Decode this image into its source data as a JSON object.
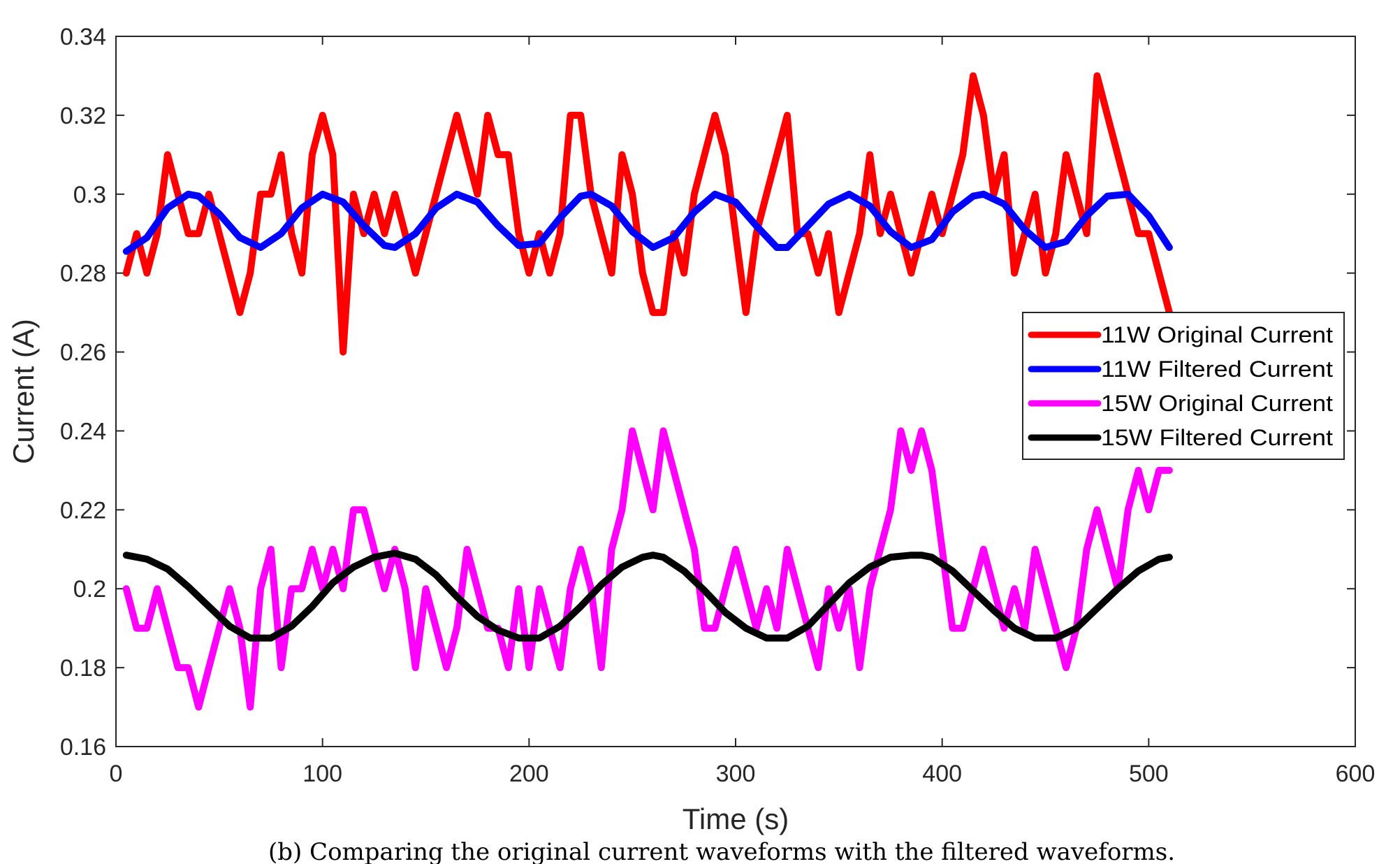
{
  "chart_data": {
    "type": "line",
    "title": "",
    "xlabel": "Time (s)",
    "ylabel": "Current (A)",
    "xlim": [
      0,
      600
    ],
    "ylim": [
      0.16,
      0.34
    ],
    "xticks": [
      0,
      100,
      200,
      300,
      400,
      500,
      600
    ],
    "yticks": [
      0.16,
      0.18,
      0.2,
      0.22,
      0.24,
      0.26,
      0.28,
      0.3,
      0.32,
      0.34
    ],
    "xtick_labels": [
      "0",
      "100",
      "200",
      "300",
      "400",
      "500",
      "600"
    ],
    "ytick_labels": [
      "0.16",
      "0.18",
      "0.2",
      "0.22",
      "0.24",
      "0.26",
      "0.28",
      "0.3",
      "0.32",
      "0.34"
    ],
    "grid": false,
    "legend_position": "right",
    "series": [
      {
        "name": "11W Original Current",
        "color": "#ff0000",
        "x": [
          5,
          10,
          15,
          20,
          25,
          30,
          35,
          40,
          45,
          50,
          55,
          60,
          65,
          70,
          75,
          80,
          85,
          90,
          95,
          100,
          105,
          110,
          115,
          120,
          125,
          130,
          135,
          140,
          145,
          150,
          155,
          160,
          165,
          170,
          175,
          180,
          185,
          190,
          195,
          200,
          205,
          210,
          215,
          220,
          225,
          230,
          235,
          240,
          245,
          250,
          255,
          260,
          265,
          270,
          275,
          280,
          285,
          290,
          295,
          300,
          305,
          310,
          315,
          320,
          325,
          330,
          335,
          340,
          345,
          350,
          355,
          360,
          365,
          370,
          375,
          380,
          385,
          390,
          395,
          400,
          405,
          410,
          415,
          420,
          425,
          430,
          435,
          440,
          445,
          450,
          455,
          460,
          465,
          470,
          475,
          480,
          485,
          490,
          495,
          500,
          505,
          510
        ],
        "y": [
          0.28,
          0.29,
          0.28,
          0.29,
          0.31,
          0.3,
          0.29,
          0.29,
          0.3,
          0.29,
          0.28,
          0.27,
          0.28,
          0.3,
          0.3,
          0.31,
          0.29,
          0.28,
          0.31,
          0.32,
          0.31,
          0.26,
          0.3,
          0.29,
          0.3,
          0.29,
          0.3,
          0.29,
          0.28,
          0.29,
          0.3,
          0.31,
          0.32,
          0.31,
          0.3,
          0.32,
          0.31,
          0.31,
          0.29,
          0.28,
          0.29,
          0.28,
          0.29,
          0.32,
          0.32,
          0.3,
          0.29,
          0.28,
          0.31,
          0.3,
          0.28,
          0.27,
          0.27,
          0.29,
          0.28,
          0.3,
          0.31,
          0.32,
          0.31,
          0.29,
          0.27,
          0.29,
          0.3,
          0.31,
          0.32,
          0.29,
          0.29,
          0.28,
          0.29,
          0.27,
          0.28,
          0.29,
          0.31,
          0.29,
          0.3,
          0.29,
          0.28,
          0.29,
          0.3,
          0.29,
          0.3,
          0.31,
          0.33,
          0.32,
          0.3,
          0.31,
          0.28,
          0.29,
          0.3,
          0.28,
          0.29,
          0.31,
          0.3,
          0.29,
          0.33,
          0.32,
          0.31,
          0.3,
          0.29,
          0.29,
          0.28,
          0.27
        ]
      },
      {
        "name": "11W Filtered Current",
        "color": "#0000ff",
        "x": [
          5,
          15,
          25,
          35,
          40,
          50,
          60,
          70,
          80,
          90,
          100,
          110,
          120,
          130,
          135,
          145,
          155,
          165,
          175,
          185,
          195,
          205,
          215,
          225,
          230,
          240,
          250,
          260,
          270,
          280,
          290,
          300,
          310,
          320,
          325,
          335,
          345,
          355,
          365,
          375,
          385,
          395,
          405,
          415,
          420,
          430,
          440,
          450,
          460,
          470,
          480,
          490,
          500,
          510
        ],
        "y": [
          0.2855,
          0.289,
          0.2965,
          0.3,
          0.2995,
          0.295,
          0.289,
          0.2865,
          0.29,
          0.2965,
          0.3,
          0.298,
          0.292,
          0.287,
          0.2865,
          0.29,
          0.2965,
          0.3,
          0.298,
          0.292,
          0.287,
          0.2875,
          0.294,
          0.2995,
          0.3,
          0.297,
          0.2905,
          0.2865,
          0.289,
          0.2955,
          0.3,
          0.298,
          0.292,
          0.2865,
          0.2865,
          0.292,
          0.2975,
          0.3,
          0.297,
          0.2905,
          0.2865,
          0.2885,
          0.2955,
          0.2995,
          0.3,
          0.2975,
          0.291,
          0.2865,
          0.288,
          0.2945,
          0.2995,
          0.3,
          0.2945,
          0.2865
        ]
      },
      {
        "name": "15W Original Current",
        "color": "#ff00ff",
        "x": [
          5,
          10,
          15,
          20,
          25,
          30,
          35,
          40,
          45,
          50,
          55,
          60,
          65,
          70,
          75,
          80,
          85,
          90,
          95,
          100,
          105,
          110,
          115,
          120,
          125,
          130,
          135,
          140,
          145,
          150,
          155,
          160,
          165,
          170,
          175,
          180,
          185,
          190,
          195,
          200,
          205,
          210,
          215,
          220,
          225,
          230,
          235,
          240,
          245,
          250,
          255,
          260,
          265,
          270,
          275,
          280,
          285,
          290,
          295,
          300,
          305,
          310,
          315,
          320,
          325,
          330,
          335,
          340,
          345,
          350,
          355,
          360,
          365,
          370,
          375,
          380,
          385,
          390,
          395,
          400,
          405,
          410,
          415,
          420,
          425,
          430,
          435,
          440,
          445,
          450,
          455,
          460,
          465,
          470,
          475,
          480,
          485,
          490,
          495,
          500,
          505,
          510
        ],
        "y": [
          0.2,
          0.19,
          0.19,
          0.2,
          0.19,
          0.18,
          0.18,
          0.17,
          0.18,
          0.19,
          0.2,
          0.19,
          0.17,
          0.2,
          0.21,
          0.18,
          0.2,
          0.2,
          0.21,
          0.2,
          0.21,
          0.2,
          0.22,
          0.22,
          0.21,
          0.2,
          0.21,
          0.2,
          0.18,
          0.2,
          0.19,
          0.18,
          0.19,
          0.21,
          0.2,
          0.19,
          0.19,
          0.18,
          0.2,
          0.18,
          0.2,
          0.19,
          0.18,
          0.2,
          0.21,
          0.2,
          0.18,
          0.21,
          0.22,
          0.24,
          0.23,
          0.22,
          0.24,
          0.23,
          0.22,
          0.21,
          0.19,
          0.19,
          0.2,
          0.21,
          0.2,
          0.19,
          0.2,
          0.19,
          0.21,
          0.2,
          0.19,
          0.18,
          0.2,
          0.19,
          0.2,
          0.18,
          0.2,
          0.21,
          0.22,
          0.24,
          0.23,
          0.24,
          0.23,
          0.21,
          0.19,
          0.19,
          0.2,
          0.21,
          0.2,
          0.19,
          0.2,
          0.19,
          0.21,
          0.2,
          0.19,
          0.18,
          0.19,
          0.21,
          0.22,
          0.21,
          0.2,
          0.22,
          0.23,
          0.22,
          0.23,
          0.23
        ]
      },
      {
        "name": "15W Filtered Current",
        "color": "#000000",
        "x": [
          5,
          15,
          25,
          35,
          45,
          55,
          65,
          70,
          75,
          85,
          95,
          105,
          115,
          125,
          135,
          145,
          155,
          165,
          175,
          185,
          195,
          200,
          205,
          215,
          225,
          235,
          245,
          255,
          260,
          265,
          275,
          285,
          295,
          305,
          315,
          320,
          325,
          335,
          345,
          355,
          365,
          375,
          385,
          390,
          395,
          405,
          415,
          425,
          435,
          445,
          450,
          455,
          465,
          475,
          485,
          495,
          505,
          510
        ],
        "y": [
          0.2085,
          0.2075,
          0.205,
          0.2005,
          0.1955,
          0.1905,
          0.1875,
          0.1875,
          0.1875,
          0.1905,
          0.1955,
          0.2015,
          0.2055,
          0.208,
          0.209,
          0.2075,
          0.2035,
          0.198,
          0.193,
          0.1895,
          0.1875,
          0.1875,
          0.1875,
          0.1905,
          0.1955,
          0.201,
          0.2055,
          0.208,
          0.2085,
          0.208,
          0.2045,
          0.1995,
          0.194,
          0.19,
          0.1875,
          0.1875,
          0.1875,
          0.1905,
          0.196,
          0.2015,
          0.2055,
          0.208,
          0.2085,
          0.2085,
          0.208,
          0.2045,
          0.1995,
          0.1945,
          0.19,
          0.1875,
          0.1875,
          0.1875,
          0.19,
          0.195,
          0.2,
          0.2045,
          0.2075,
          0.208
        ]
      }
    ]
  },
  "caption": "(b) Comparing the original current waveforms with the filtered waveforms."
}
